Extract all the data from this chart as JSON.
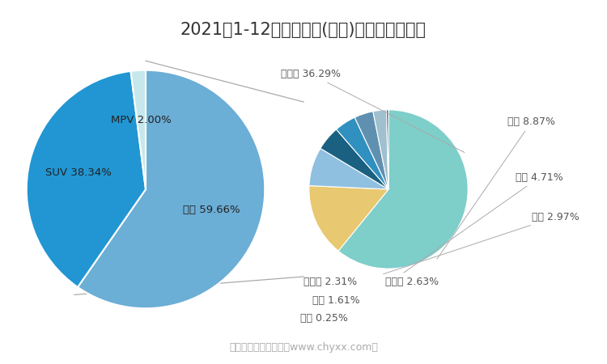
{
  "title": "2021年1-12月北京现代(轿车)销量占比统计图",
  "title_fontsize": 15,
  "background_color": "#ffffff",
  "left_pie": {
    "labels": [
      "轿车",
      "SUV",
      "MPV"
    ],
    "values": [
      59.66,
      38.34,
      2.0
    ],
    "colors": [
      "#6baed6",
      "#2196d3",
      "#c6e8ec"
    ],
    "startangle": 90
  },
  "right_pie": {
    "labels": [
      "伊兰特",
      "悦动",
      "悦纳",
      "瑞纳",
      "菲斯塔",
      "索纳塔",
      "名图",
      "领动"
    ],
    "values": [
      36.29,
      8.87,
      4.71,
      2.97,
      2.63,
      2.31,
      1.61,
      0.25
    ],
    "colors": [
      "#7ececa",
      "#e8c870",
      "#90c0e0",
      "#1a6080",
      "#3090c0",
      "#6090b0",
      "#a0c0d0",
      "#406080"
    ],
    "startangle": 90
  },
  "left_label_pos": {
    "轿车": [
      0.35,
      0.0
    ],
    "SUV": [
      -0.35,
      0.0
    ],
    "MPV": [
      -0.25,
      -0.7
    ]
  },
  "footer": "制图：智研咨询整理（www.chyxx.com）",
  "footer_color": "#aaaaaa",
  "footer_fontsize": 9,
  "connect_line_color": "#aaaaaa",
  "label_color": "#555555",
  "label_fontsize": 9
}
